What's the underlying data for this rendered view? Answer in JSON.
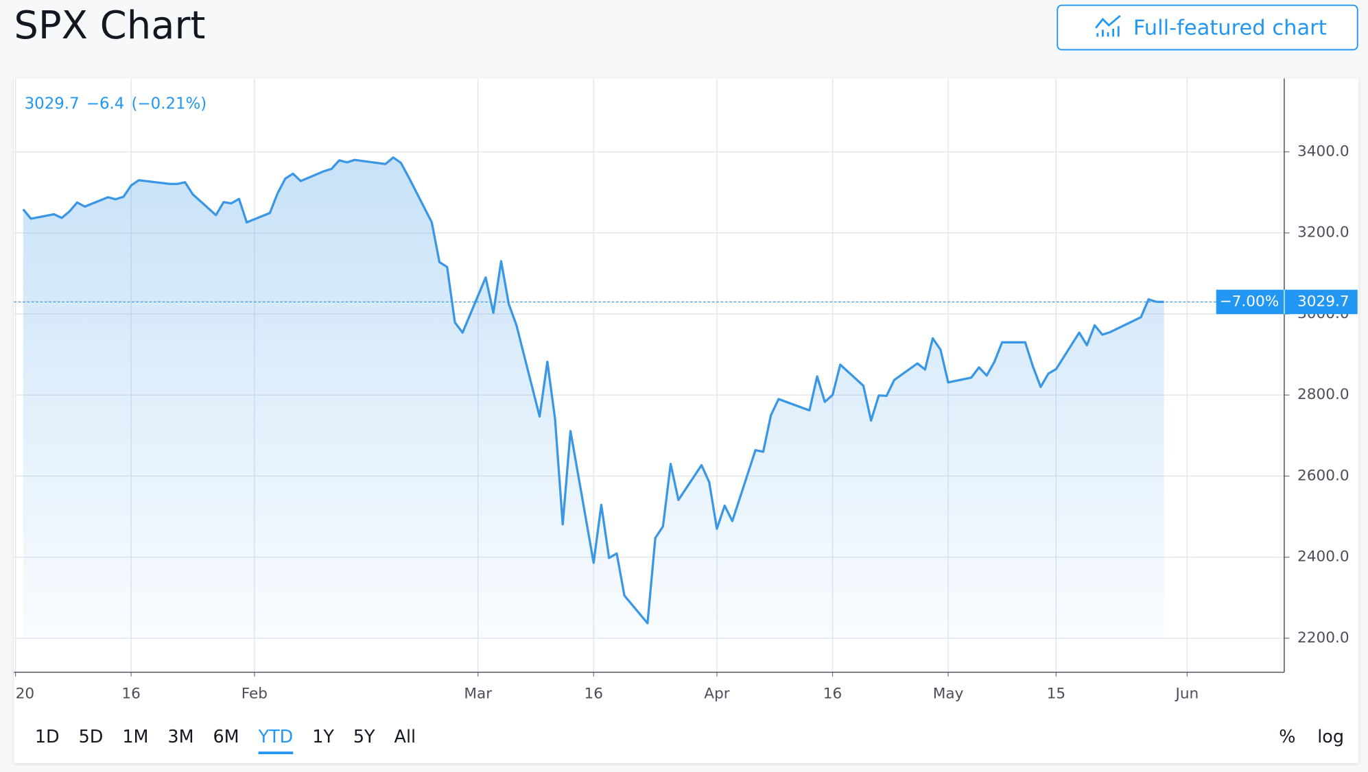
{
  "page_title": "SPX Chart",
  "full_chart_button": "Full-featured chart",
  "chart_data": {
    "type": "line",
    "color": "#3a97e6",
    "header": {
      "last": "3029.7",
      "change": "−6.4",
      "change_pct": "(−0.21%)"
    },
    "x": [
      2,
      3,
      6,
      7,
      8,
      9,
      10,
      13,
      14,
      15,
      16,
      17,
      21,
      22,
      23,
      24,
      27,
      28,
      29,
      30,
      31,
      34,
      35,
      36,
      37,
      38,
      41,
      42,
      43,
      44,
      45,
      49,
      50,
      51,
      52,
      55,
      56,
      57,
      58,
      59,
      62,
      63,
      64,
      65,
      66,
      69,
      70,
      71,
      72,
      73,
      76,
      77,
      78,
      79,
      80,
      83,
      84,
      85,
      86,
      87,
      90,
      91,
      92,
      93,
      94,
      97,
      98,
      99,
      100,
      104,
      105,
      106,
      107,
      108,
      111,
      112,
      113,
      114,
      115,
      118,
      119,
      120,
      121,
      122,
      125,
      126,
      127,
      128,
      129,
      132,
      133,
      134,
      135,
      136,
      139,
      140,
      141,
      142,
      143,
      147,
      148,
      149,
      150
    ],
    "values": [
      3258,
      3235,
      3246,
      3237,
      3253,
      3275,
      3265,
      3288,
      3283,
      3289,
      3317,
      3330,
      3321,
      3321,
      3325,
      3295,
      3244,
      3276,
      3273,
      3284,
      3226,
      3249,
      3298,
      3334,
      3346,
      3328,
      3352,
      3358,
      3379,
      3374,
      3380,
      3370,
      3386,
      3373,
      3338,
      3226,
      3128,
      3116,
      2979,
      2954,
      3090,
      3003,
      3130,
      3024,
      2972,
      2747,
      2882,
      2741,
      2481,
      2711,
      2386,
      2529,
      2398,
      2409,
      2305,
      2237,
      2447,
      2476,
      2630,
      2541,
      2627,
      2585,
      2470,
      2527,
      2489,
      2664,
      2660,
      2750,
      2790,
      2762,
      2846,
      2783,
      2800,
      2875,
      2823,
      2737,
      2799,
      2798,
      2837,
      2878,
      2863,
      2940,
      2912,
      2831,
      2843,
      2868,
      2848,
      2882,
      2930,
      2930,
      2870,
      2820,
      2853,
      2864,
      2954,
      2923,
      2972,
      2949,
      2955,
      2992,
      3036,
      3030,
      3029.7
    ],
    "xlim": [
      0.8,
      165.6
    ],
    "xticks": [
      {
        "value": 1,
        "label": "20"
      },
      {
        "value": 16,
        "label": "16"
      },
      {
        "value": 32,
        "label": "Feb"
      },
      {
        "value": 61,
        "label": "Mar"
      },
      {
        "value": 76,
        "label": "16"
      },
      {
        "value": 92,
        "label": "Apr"
      },
      {
        "value": 107,
        "label": "16"
      },
      {
        "value": 122,
        "label": "May"
      },
      {
        "value": 136,
        "label": "15"
      },
      {
        "value": 153,
        "label": "Jun"
      }
    ],
    "ylim": [
      2116,
      3581
    ],
    "yticks": [
      {
        "value": 2200,
        "label": "2200.0"
      },
      {
        "value": 2400,
        "label": "2400.0"
      },
      {
        "value": 2600,
        "label": "2600.0"
      },
      {
        "value": 2800,
        "label": "2800.0"
      },
      {
        "value": 3000,
        "label": "3000.0"
      },
      {
        "value": 3200,
        "label": "3200.0"
      },
      {
        "value": 3400,
        "label": "3400.0"
      }
    ],
    "grid": true,
    "price_line": {
      "value": 3029.7,
      "label": "3029.7",
      "change_label": "−7.00%"
    },
    "ranges": [
      {
        "label": "1D"
      },
      {
        "label": "5D"
      },
      {
        "label": "1M"
      },
      {
        "label": "3M"
      },
      {
        "label": "6M"
      },
      {
        "label": "YTD",
        "active": true
      },
      {
        "label": "1Y"
      },
      {
        "label": "5Y"
      },
      {
        "label": "All"
      }
    ],
    "scale_options": [
      "%",
      "log"
    ]
  }
}
